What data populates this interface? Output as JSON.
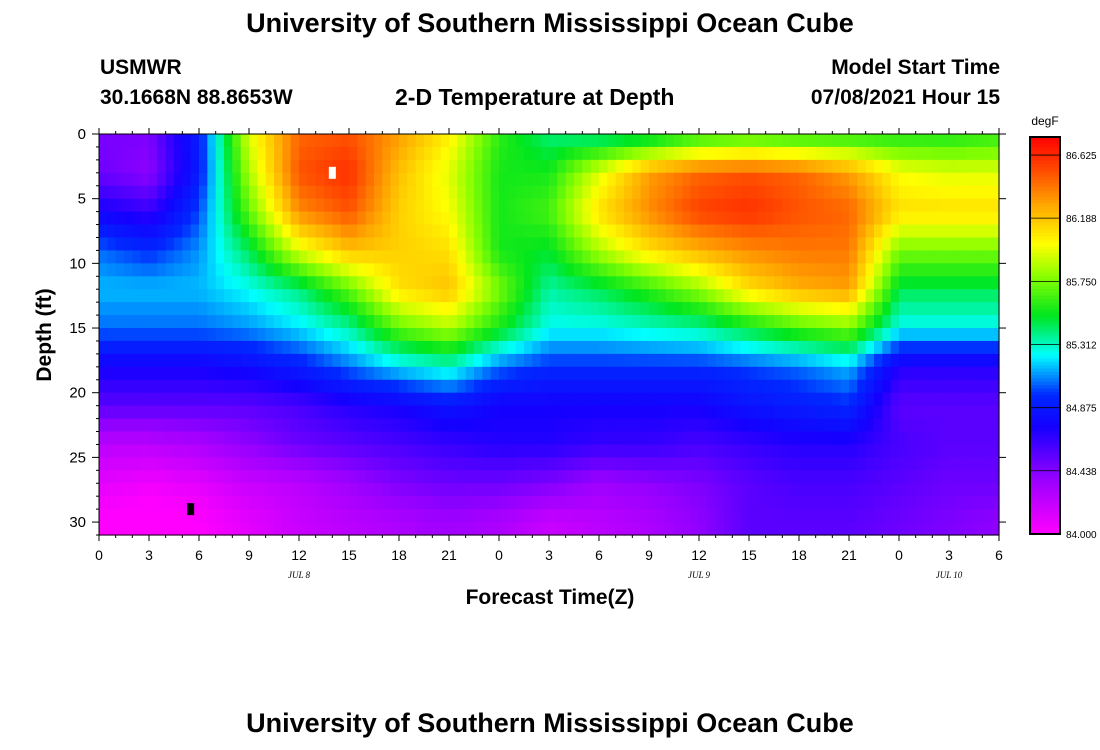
{
  "header": {
    "title": "University of Southern Mississippi Ocean Cube",
    "station": "USMWR",
    "coords": "30.1668N  88.8653W",
    "subtitle": "2-D Temperature at Depth",
    "model_start_label": "Model Start Time",
    "model_start_value": "07/08/2021 Hour 15"
  },
  "footer": {
    "title": "University of Southern Mississippi Ocean Cube"
  },
  "chart_data": {
    "type": "heatmap",
    "title": "2-D Temperature at Depth",
    "xlabel": "Forecast Time(Z)",
    "ylabel": "Depth (ft)",
    "x_hours_range": [
      0,
      54
    ],
    "x_tick_hours": [
      0,
      3,
      6,
      9,
      12,
      15,
      18,
      21,
      24,
      27,
      30,
      33,
      36,
      39,
      42,
      45,
      48,
      51,
      54
    ],
    "x_tick_labels": [
      "0",
      "3",
      "6",
      "9",
      "12",
      "15",
      "18",
      "21",
      "0",
      "3",
      "6",
      "9",
      "12",
      "15",
      "18",
      "21",
      "0",
      "3",
      "6"
    ],
    "date_labels": [
      {
        "hour": 12,
        "text": "JUL 8"
      },
      {
        "hour": 36,
        "text": "JUL 9"
      },
      {
        "hour": 51,
        "text": "JUL 10"
      }
    ],
    "y_range": [
      0,
      31
    ],
    "y_ticks": [
      0,
      5,
      10,
      15,
      20,
      25,
      30
    ],
    "colorbar": {
      "unit": "degF",
      "min": 84.0,
      "max": 86.75,
      "tick_values": [
        84.0,
        84.438,
        84.875,
        85.312,
        85.75,
        86.188,
        86.625
      ],
      "tick_labels": [
        "84.000",
        "84.438",
        "84.875",
        "85.312",
        "85.750",
        "86.188",
        "86.625"
      ]
    },
    "markers": [
      {
        "type": "max",
        "hour": 14,
        "depth": 3,
        "color": "#ffffff"
      },
      {
        "type": "min",
        "hour": 5.5,
        "depth": 29,
        "color": "#000000"
      }
    ],
    "hours": [
      0,
      3,
      6,
      9,
      12,
      15,
      18,
      21,
      24,
      27,
      30,
      33,
      36,
      39,
      42,
      45,
      48,
      51,
      54
    ],
    "depths": [
      0,
      3,
      6,
      9,
      12,
      15,
      18,
      21,
      24,
      27,
      30
    ],
    "temps_degF": [
      [
        84.46,
        84.46,
        84.9,
        85.95,
        86.45,
        86.5,
        86.3,
        86.05,
        85.6,
        85.4,
        85.35,
        85.4,
        85.55,
        85.6,
        85.55,
        85.55,
        85.55,
        85.55,
        85.6
      ],
      [
        84.5,
        84.4,
        84.9,
        85.85,
        86.5,
        86.6,
        86.2,
        85.95,
        85.55,
        85.55,
        85.95,
        86.3,
        86.45,
        86.5,
        86.45,
        86.3,
        86.0,
        85.95,
        85.95
      ],
      [
        84.75,
        84.65,
        85.0,
        85.7,
        86.35,
        86.5,
        86.15,
        86.0,
        85.55,
        85.65,
        86.1,
        86.35,
        86.55,
        86.6,
        86.5,
        86.45,
        86.1,
        86.1,
        86.1
      ],
      [
        85.05,
        84.95,
        85.1,
        85.45,
        85.95,
        86.2,
        86.15,
        86.1,
        85.55,
        85.5,
        85.85,
        86.1,
        86.25,
        86.35,
        86.4,
        86.4,
        85.75,
        85.75,
        85.75
      ],
      [
        85.15,
        85.15,
        85.15,
        85.25,
        85.4,
        85.7,
        86.1,
        86.2,
        85.75,
        85.35,
        85.45,
        85.6,
        85.8,
        86.1,
        86.25,
        86.3,
        85.45,
        85.45,
        85.45
      ],
      [
        85.05,
        85.05,
        85.05,
        85.1,
        85.2,
        85.35,
        85.7,
        85.85,
        85.55,
        85.25,
        85.25,
        85.3,
        85.35,
        85.5,
        85.65,
        85.75,
        85.25,
        85.25,
        85.25
      ],
      [
        84.75,
        84.75,
        84.75,
        84.8,
        84.9,
        85.05,
        85.2,
        85.3,
        85.05,
        84.95,
        84.95,
        84.95,
        84.95,
        85.0,
        85.05,
        85.15,
        84.7,
        84.7,
        84.7
      ],
      [
        84.55,
        84.55,
        84.55,
        84.55,
        84.6,
        84.7,
        84.75,
        84.85,
        84.75,
        84.75,
        84.75,
        84.75,
        84.75,
        84.85,
        84.9,
        84.95,
        84.55,
        84.55,
        84.55
      ],
      [
        84.25,
        84.25,
        84.3,
        84.4,
        84.5,
        84.55,
        84.6,
        84.65,
        84.7,
        84.7,
        84.65,
        84.65,
        84.6,
        84.65,
        84.7,
        84.7,
        84.6,
        84.55,
        84.55
      ],
      [
        84.1,
        84.05,
        84.1,
        84.2,
        84.25,
        84.35,
        84.45,
        84.5,
        84.5,
        84.45,
        84.35,
        84.4,
        84.45,
        84.55,
        84.6,
        84.6,
        84.55,
        84.5,
        84.5
      ],
      [
        84.0,
        83.95,
        84.0,
        84.1,
        84.2,
        84.25,
        84.3,
        84.35,
        84.3,
        84.2,
        84.25,
        84.3,
        84.4,
        84.55,
        84.55,
        84.55,
        84.5,
        84.45,
        84.4
      ]
    ]
  }
}
